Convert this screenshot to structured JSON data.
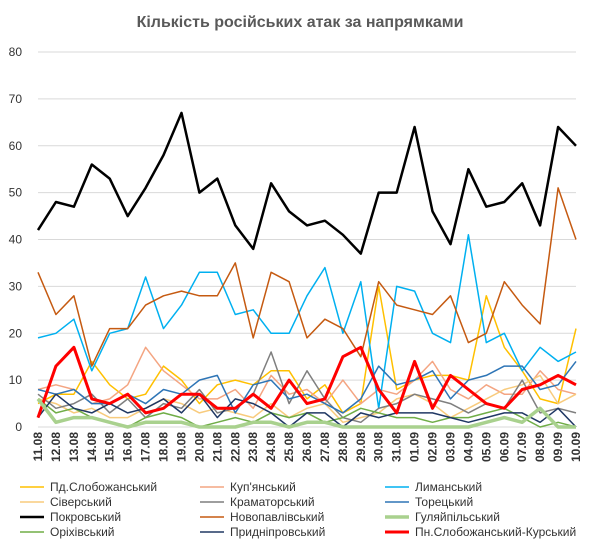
{
  "chart_data": {
    "type": "line",
    "title": "Кількість російських атак за напрямками",
    "categories": [
      "11.08",
      "12.08",
      "13.08",
      "14.08",
      "15.08",
      "16.08",
      "17.08",
      "18.08",
      "19.08",
      "20.08",
      "21.08",
      "22.08",
      "23.08",
      "24.08",
      "25.08",
      "26.08",
      "27.08",
      "28.08",
      "29.08",
      "30.08",
      "31.08",
      "01.09",
      "02.09",
      "03.09",
      "04.09",
      "05.09",
      "06.09",
      "07.09",
      "08.09",
      "09.09",
      "10.09"
    ],
    "ylim": [
      0,
      80
    ],
    "yticks": [
      0,
      10,
      20,
      30,
      40,
      50,
      60,
      70,
      80
    ],
    "grid": true,
    "series": [
      {
        "name": "Пд.Слобожанський",
        "color": "#ffc000",
        "width": 1.5,
        "values": [
          5,
          7,
          7,
          14,
          9,
          6,
          7,
          13,
          10,
          5,
          9,
          10,
          9,
          12,
          12,
          6,
          9,
          3,
          5,
          30,
          8,
          10,
          11,
          11,
          10,
          28,
          17,
          12,
          6,
          5,
          21
        ]
      },
      {
        "name": "Куп'янський",
        "color": "#f4a582",
        "width": 1.5,
        "values": [
          8,
          9,
          8,
          5,
          6,
          9,
          17,
          12,
          9,
          6,
          6,
          8,
          4,
          11,
          7,
          8,
          5,
          10,
          5,
          8,
          7,
          10,
          14,
          8,
          6,
          9,
          7,
          7,
          12,
          8,
          7
        ]
      },
      {
        "name": "Лиманський",
        "color": "#00b0f0",
        "width": 1.5,
        "values": [
          19,
          20,
          23,
          12,
          20,
          21,
          32,
          21,
          26,
          33,
          33,
          24,
          25,
          20,
          20,
          28,
          34,
          20,
          31,
          4,
          30,
          29,
          20,
          18,
          41,
          18,
          20,
          12,
          17,
          14,
          16
        ]
      },
      {
        "name": "Сіверський",
        "color": "#f8cb7d",
        "width": 1.5,
        "values": [
          6,
          5,
          3,
          4,
          2,
          2,
          4,
          6,
          5,
          3,
          4,
          3,
          2,
          5,
          2,
          4,
          5,
          1,
          2,
          3,
          6,
          7,
          5,
          2,
          4,
          6,
          8,
          9,
          11,
          5,
          7
        ]
      },
      {
        "name": "Краматорський",
        "color": "#7f7f7f",
        "width": 1.5,
        "values": [
          7,
          4,
          5,
          7,
          3,
          6,
          2,
          5,
          4,
          8,
          3,
          4,
          7,
          16,
          5,
          12,
          6,
          2,
          1,
          4,
          5,
          7,
          6,
          5,
          3,
          5,
          4,
          10,
          3,
          4,
          3
        ]
      },
      {
        "name": "Торецький",
        "color": "#2e75b6",
        "width": 1.5,
        "values": [
          8,
          7,
          8,
          5,
          5,
          7,
          5,
          8,
          7,
          10,
          11,
          3,
          9,
          10,
          6,
          7,
          5,
          3,
          6,
          13,
          9,
          10,
          12,
          6,
          10,
          11,
          13,
          13,
          8,
          9,
          14
        ]
      },
      {
        "name": "Покровський",
        "color": "#000000",
        "width": 2.5,
        "values": [
          42,
          48,
          47,
          56,
          53,
          45,
          51,
          58,
          67,
          50,
          53,
          43,
          38,
          52,
          46,
          43,
          44,
          41,
          37,
          50,
          50,
          64,
          46,
          39,
          55,
          47,
          48,
          52,
          43,
          64,
          60
        ]
      },
      {
        "name": "Новопавлівський",
        "color": "#c55a11",
        "width": 1.5,
        "values": [
          33,
          24,
          28,
          13,
          21,
          21,
          26,
          28,
          29,
          28,
          28,
          35,
          19,
          33,
          31,
          19,
          23,
          21,
          15,
          31,
          26,
          25,
          24,
          28,
          18,
          20,
          31,
          26,
          22,
          51,
          40
        ]
      },
      {
        "name": "Гуляйпільський",
        "color": "#a9d18e",
        "width": 3.5,
        "values": [
          6,
          1,
          2,
          2,
          1,
          0,
          1,
          1,
          1,
          0,
          0,
          0,
          1,
          1,
          0,
          1,
          1,
          0,
          0,
          0,
          0,
          0,
          0,
          0,
          0,
          1,
          2,
          1,
          4,
          0,
          0
        ]
      },
      {
        "name": "Оріхівський",
        "color": "#70ad47",
        "width": 1.5,
        "values": [
          6,
          3,
          4,
          2,
          1,
          0,
          2,
          3,
          2,
          0,
          1,
          2,
          1,
          3,
          2,
          3,
          1,
          2,
          4,
          3,
          2,
          2,
          1,
          2,
          2,
          3,
          4,
          2,
          0,
          1,
          0
        ]
      },
      {
        "name": "Придніпровський",
        "color": "#203864",
        "width": 1.5,
        "values": [
          2,
          7,
          4,
          3,
          5,
          3,
          4,
          6,
          3,
          7,
          2,
          6,
          5,
          3,
          0,
          3,
          3,
          0,
          3,
          2,
          3,
          3,
          3,
          2,
          1,
          2,
          3,
          3,
          1,
          4,
          0
        ]
      },
      {
        "name": "Пн.Слобожанський-Курський",
        "color": "#ff0000",
        "width": 3,
        "values": [
          2,
          13,
          17,
          6,
          5,
          7,
          3,
          4,
          7,
          7,
          4,
          4,
          7,
          4,
          10,
          5,
          6,
          15,
          17,
          8,
          3,
          14,
          4,
          11,
          8,
          5,
          4,
          8,
          9,
          11,
          9
        ]
      }
    ]
  }
}
